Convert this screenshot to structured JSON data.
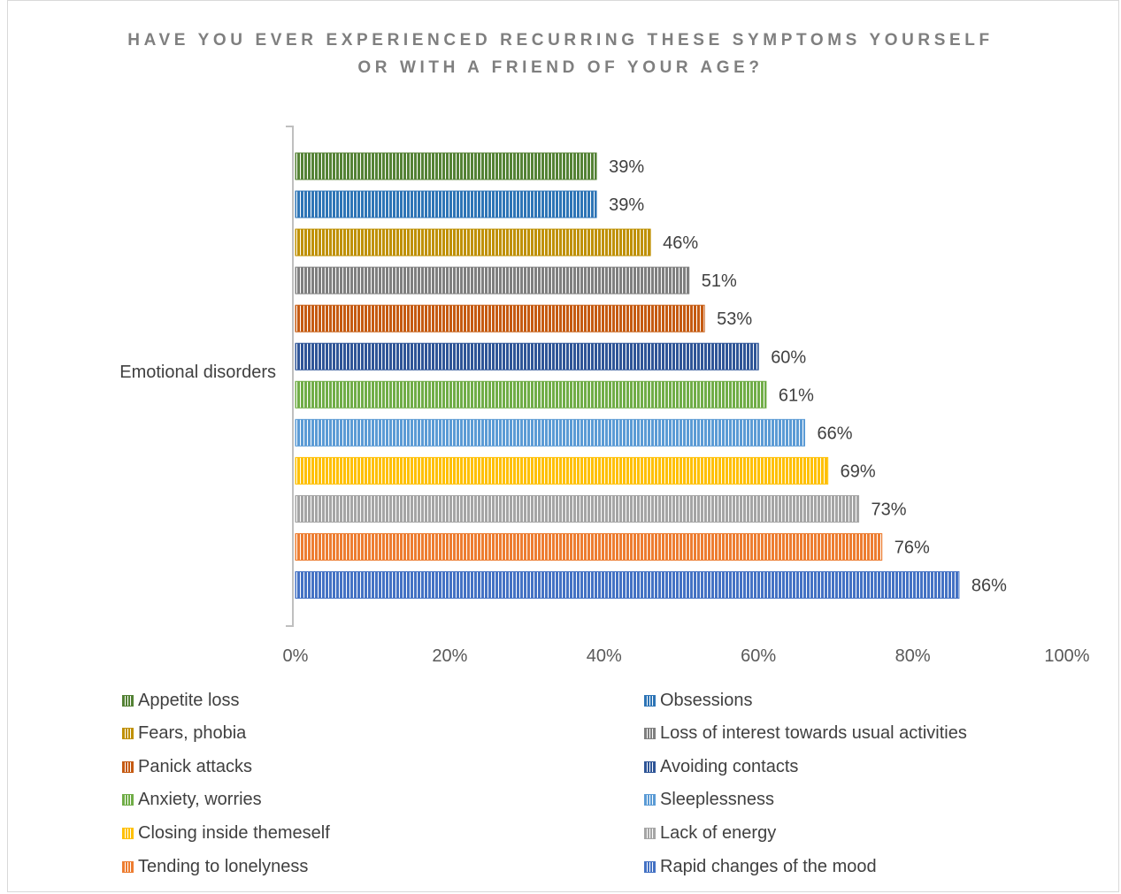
{
  "chart_data": {
    "type": "bar",
    "orientation": "horizontal",
    "title": "HAVE YOU EVER EXPERIENCED RECURRING THESE SYMPTOMS YOURSELF OR WITH A FRIEND OF YOUR AGE?",
    "title_lines": [
      "HAVE YOU EVER EXPERIENCED RECURRING THESE SYMPTOMS YOURSELF",
      "OR WITH A FRIEND OF YOUR AGE?"
    ],
    "categories": [
      "Emotional disorders"
    ],
    "xlim": [
      0,
      100
    ],
    "x_ticks": [
      "0%",
      "20%",
      "40%",
      "60%",
      "80%",
      "100%"
    ],
    "grid": false,
    "legend_position": "bottom",
    "bar_pattern": "vertical-stripes",
    "series": [
      {
        "name": "Appetite loss",
        "value": 39,
        "label": "39%",
        "color": "#548235"
      },
      {
        "name": "Obsessions",
        "value": 39,
        "label": "39%",
        "color": "#2e75b6"
      },
      {
        "name": "Fears, phobia",
        "value": 46,
        "label": "46%",
        "color": "#bf9000"
      },
      {
        "name": "Loss of interest towards usual activities",
        "value": 51,
        "label": "51%",
        "color": "#7f7f7f"
      },
      {
        "name": "Panick attacks",
        "value": 53,
        "label": "53%",
        "color": "#c55a11"
      },
      {
        "name": "Avoiding contacts",
        "value": 60,
        "label": "60%",
        "color": "#2f5597"
      },
      {
        "name": "Anxiety, worries",
        "value": 61,
        "label": "61%",
        "color": "#70ad47"
      },
      {
        "name": "Sleeplessness",
        "value": 66,
        "label": "66%",
        "color": "#5b9bd5"
      },
      {
        "name": "Closing inside themeself",
        "value": 69,
        "label": "69%",
        "color": "#ffc000"
      },
      {
        "name": "Lack of energy",
        "value": 73,
        "label": "73%",
        "color": "#a5a5a5"
      },
      {
        "name": "Tending to lonelyness",
        "value": 76,
        "label": "76%",
        "color": "#ed7d31"
      },
      {
        "name": "Rapid changes of the mood",
        "value": 86,
        "label": "86%",
        "color": "#4472c4"
      }
    ]
  }
}
